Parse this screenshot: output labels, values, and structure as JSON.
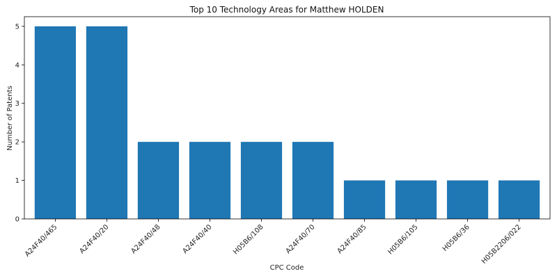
{
  "chart_data": {
    "type": "bar",
    "title": "Top 10 Technology Areas for Matthew HOLDEN",
    "xlabel": "CPC Code",
    "ylabel": "Number of Patents",
    "categories": [
      "A24F40/465",
      "A24F40/20",
      "A24F40/48",
      "A24F40/40",
      "H05B6/108",
      "A24F40/70",
      "A24F40/85",
      "H05B6/105",
      "H05B6/36",
      "H05B2206/022"
    ],
    "values": [
      5,
      5,
      2,
      2,
      2,
      2,
      1,
      1,
      1,
      1
    ],
    "ylim": [
      0,
      5.25
    ],
    "yticks": [
      0,
      1,
      2,
      3,
      4,
      5
    ],
    "bar_color": "#1f77b4",
    "grid": false,
    "legend": "none"
  }
}
